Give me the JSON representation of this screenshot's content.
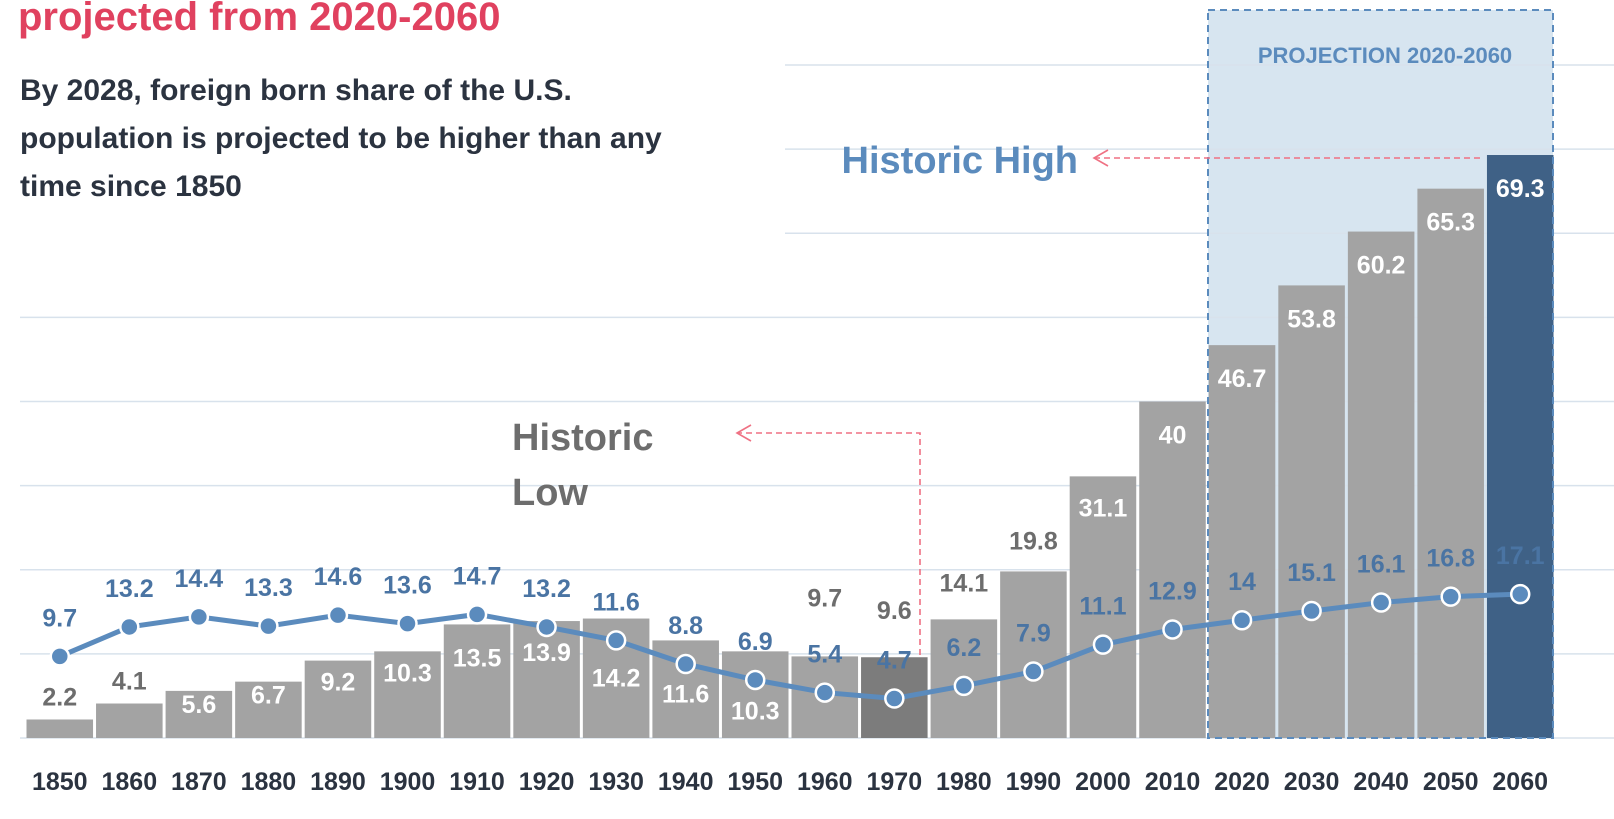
{
  "chart_data": {
    "type": "bar",
    "title": "projected from 2020-2060",
    "subtitle": [
      "By 2028, foreign born share of  the U.S.",
      "population is projected to be higher than any",
      "time since 1850"
    ],
    "annotations": {
      "historic_high": "Historic High",
      "historic_low": [
        "Historic",
        "Low"
      ],
      "projection": "PROJECTION 2020-2060"
    },
    "categories": [
      "1850",
      "1860",
      "1870",
      "1880",
      "1890",
      "1900",
      "1910",
      "1920",
      "1930",
      "1940",
      "1950",
      "1960",
      "1970",
      "1980",
      "1990",
      "2000",
      "2010",
      "2020",
      "2030",
      "2040",
      "2050",
      "2060"
    ],
    "series": [
      {
        "type": "bar",
        "color": "#a3a3a3",
        "colors": [
          "#a3a3a3",
          "#a3a3a3",
          "#a3a3a3",
          "#a3a3a3",
          "#a3a3a3",
          "#a3a3a3",
          "#a3a3a3",
          "#a3a3a3",
          "#a3a3a3",
          "#a3a3a3",
          "#a3a3a3",
          "#a3a3a3",
          "#7c7c7c",
          "#a3a3a3",
          "#a3a3a3",
          "#a3a3a3",
          "#a3a3a3",
          "#a3a3a3",
          "#a3a3a3",
          "#a3a3a3",
          "#a3a3a3",
          "#3f6186"
        ],
        "values": [
          2.2,
          4.1,
          5.6,
          6.7,
          9.2,
          10.3,
          13.5,
          13.9,
          14.2,
          11.6,
          10.3,
          9.7,
          9.6,
          14.1,
          19.8,
          31.1,
          40,
          46.7,
          53.8,
          60.2,
          65.3,
          69.3
        ]
      },
      {
        "type": "line",
        "color": "#5b8bbd",
        "values": [
          9.7,
          13.2,
          14.4,
          13.3,
          14.6,
          13.6,
          14.7,
          13.2,
          11.6,
          8.8,
          6.9,
          5.4,
          4.7,
          6.2,
          7.9,
          11.1,
          12.9,
          14,
          15.1,
          16.1,
          16.8,
          17.1
        ]
      }
    ],
    "ylim": [
      0,
      80
    ],
    "yticks": [
      0,
      10,
      20,
      30,
      40,
      50,
      60,
      70,
      80
    ],
    "grid": true
  }
}
